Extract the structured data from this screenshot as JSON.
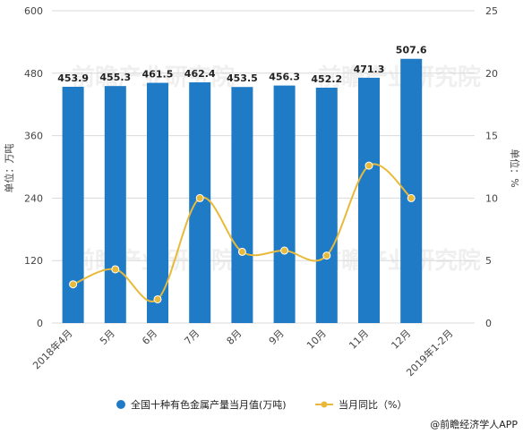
{
  "chart_data": {
    "type": "bar+line",
    "categories": [
      "2018年4月",
      "5月",
      "6月",
      "7月",
      "8月",
      "9月",
      "10月",
      "11月",
      "12月",
      "2019年1-2月"
    ],
    "series": [
      {
        "name": "全国十种有色金属产量当月值(万吨)",
        "type": "bar",
        "axis": "left",
        "color": "#1f7bc6",
        "values": [
          453.9,
          455.3,
          461.5,
          462.4,
          453.5,
          456.3,
          452.2,
          471.3,
          507.6,
          null
        ],
        "labels": [
          "453.9",
          "455.3",
          "461.5",
          "462.4",
          "453.5",
          "456.3",
          "452.2",
          "471.3",
          "507.6",
          ""
        ]
      },
      {
        "name": "当月同比（%）",
        "type": "line",
        "axis": "right",
        "color": "#e8b93a",
        "values": [
          3.1,
          4.3,
          1.9,
          10.0,
          5.7,
          5.8,
          5.4,
          12.6,
          10.0,
          null
        ]
      }
    ],
    "left_axis": {
      "label": "单位：万吨",
      "min": 0,
      "max": 600,
      "ticks": [
        0,
        120,
        240,
        360,
        480,
        600
      ]
    },
    "right_axis": {
      "label": "单位：%",
      "min": 0,
      "max": 25,
      "ticks": [
        0,
        5,
        10,
        15,
        20,
        25
      ]
    },
    "grid": true,
    "legend_position": "bottom"
  },
  "source": "@前瞻经济学人APP",
  "watermark": "前瞻产业研究院"
}
